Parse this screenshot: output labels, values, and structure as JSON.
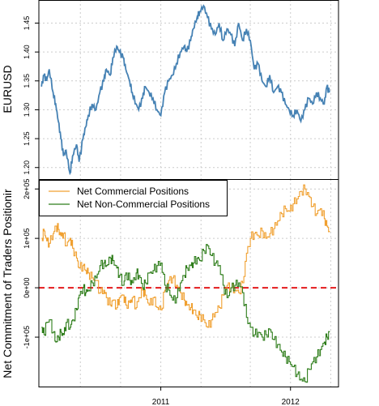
{
  "chart_data": [
    {
      "type": "line",
      "ylabel": "EURUSD",
      "ylim": [
        1.18,
        1.49
      ],
      "yticks": [
        1.2,
        1.25,
        1.3,
        1.35,
        1.4,
        1.45
      ],
      "ytick_labels": [
        "1.20",
        "1.25",
        "1.30",
        "1.35",
        "1.40",
        "1.45"
      ],
      "xlim": [
        2010.06,
        2012.37
      ],
      "grid": true,
      "color": "#4682b4",
      "series": [
        {
          "x": [
            2010.08,
            2010.1,
            2010.12,
            2010.14,
            2010.17,
            2010.19,
            2010.21,
            2010.23,
            2010.25,
            2010.27,
            2010.3,
            2010.32,
            2010.35,
            2010.37,
            2010.4,
            2010.42,
            2010.44,
            2010.47,
            2010.5,
            2010.53,
            2010.56,
            2010.58,
            2010.61,
            2010.63,
            2010.66,
            2010.68,
            2010.71,
            2010.73,
            2010.76,
            2010.78,
            2010.81,
            2010.83,
            2010.86,
            2010.88,
            2010.91,
            2010.94,
            2010.97,
            2011.0,
            2011.03,
            2011.06,
            2011.09,
            2011.12,
            2011.15,
            2011.18,
            2011.2,
            2011.23,
            2011.25,
            2011.28,
            2011.3,
            2011.33,
            2011.36,
            2011.39,
            2011.42,
            2011.45,
            2011.48,
            2011.51,
            2011.54,
            2011.57,
            2011.6,
            2011.63,
            2011.66,
            2011.69,
            2011.72,
            2011.75,
            2011.78,
            2011.81,
            2011.84,
            2011.87,
            2011.9,
            2011.93,
            2011.96,
            2011.99,
            2012.02,
            2012.05,
            2012.08,
            2012.11,
            2012.14,
            2012.17,
            2012.2,
            2012.23,
            2012.26,
            2012.28,
            2012.3
          ],
          "values": [
            1.34,
            1.36,
            1.35,
            1.37,
            1.33,
            1.31,
            1.28,
            1.25,
            1.22,
            1.23,
            1.19,
            1.22,
            1.24,
            1.21,
            1.25,
            1.27,
            1.29,
            1.31,
            1.3,
            1.33,
            1.35,
            1.37,
            1.36,
            1.39,
            1.41,
            1.4,
            1.39,
            1.37,
            1.35,
            1.33,
            1.31,
            1.3,
            1.32,
            1.34,
            1.33,
            1.32,
            1.3,
            1.29,
            1.33,
            1.35,
            1.36,
            1.38,
            1.4,
            1.41,
            1.4,
            1.42,
            1.44,
            1.46,
            1.47,
            1.48,
            1.46,
            1.44,
            1.43,
            1.45,
            1.42,
            1.44,
            1.43,
            1.41,
            1.45,
            1.42,
            1.44,
            1.42,
            1.37,
            1.38,
            1.35,
            1.34,
            1.36,
            1.33,
            1.34,
            1.33,
            1.31,
            1.3,
            1.29,
            1.3,
            1.28,
            1.3,
            1.32,
            1.31,
            1.33,
            1.32,
            1.31,
            1.34,
            1.33
          ]
        }
      ]
    },
    {
      "type": "line",
      "ylabel": "Net Commitment of Traders Positionir",
      "ylim": [
        -200000,
        220000
      ],
      "yticks": [
        200000,
        100000,
        0,
        -100000
      ],
      "ytick_labels": [
        "2e+05",
        "1e+05",
        "0e+00",
        "-1e+05"
      ],
      "xlim": [
        2010.06,
        2012.37
      ],
      "x_ticks": [
        2011.0,
        2012.0
      ],
      "x_tick_labels": [
        "2011",
        "2012"
      ],
      "grid": true,
      "legend_position": "top-left",
      "reference_line": {
        "y": 0,
        "color": "#e41a1c",
        "style": "dashed"
      },
      "x": [
        2010.08,
        2010.1,
        2010.12,
        2010.14,
        2010.17,
        2010.19,
        2010.21,
        2010.23,
        2010.25,
        2010.27,
        2010.3,
        2010.32,
        2010.35,
        2010.37,
        2010.4,
        2010.42,
        2010.44,
        2010.47,
        2010.5,
        2010.53,
        2010.56,
        2010.58,
        2010.61,
        2010.63,
        2010.66,
        2010.68,
        2010.71,
        2010.73,
        2010.76,
        2010.78,
        2010.81,
        2010.83,
        2010.86,
        2010.88,
        2010.91,
        2010.94,
        2010.97,
        2011.0,
        2011.03,
        2011.06,
        2011.09,
        2011.12,
        2011.15,
        2011.18,
        2011.2,
        2011.23,
        2011.25,
        2011.28,
        2011.3,
        2011.33,
        2011.36,
        2011.39,
        2011.42,
        2011.45,
        2011.48,
        2011.51,
        2011.54,
        2011.57,
        2011.6,
        2011.63,
        2011.66,
        2011.69,
        2011.72,
        2011.75,
        2011.78,
        2011.81,
        2011.84,
        2011.87,
        2011.9,
        2011.93,
        2011.96,
        2011.99,
        2012.02,
        2012.05,
        2012.08,
        2012.11,
        2012.14,
        2012.17,
        2012.2,
        2012.23,
        2012.26,
        2012.28,
        2012.3
      ],
      "series": [
        {
          "name": "Net Commercial Positions",
          "color": "#f0a030",
          "values": [
            100000,
            115000,
            95000,
            90000,
            110000,
            125000,
            118000,
            105000,
            110000,
            85000,
            100000,
            80000,
            60000,
            40000,
            45000,
            35000,
            30000,
            20000,
            15000,
            -10000,
            -5000,
            -20000,
            -35000,
            -25000,
            -40000,
            -20000,
            -15000,
            -35000,
            -30000,
            -20000,
            -40000,
            -20000,
            -5000,
            -15000,
            -35000,
            -20000,
            -40000,
            -45000,
            -5000,
            15000,
            20000,
            5000,
            -10000,
            -25000,
            -35000,
            -40000,
            -45000,
            -60000,
            -55000,
            -65000,
            -80000,
            -65000,
            -50000,
            -40000,
            -15000,
            5000,
            0,
            -5000,
            -10000,
            10000,
            70000,
            100000,
            110000,
            105000,
            115000,
            100000,
            110000,
            120000,
            135000,
            150000,
            160000,
            155000,
            170000,
            180000,
            195000,
            200000,
            185000,
            165000,
            150000,
            160000,
            140000,
            125000,
            115000
          ]
        },
        {
          "name": "Net Non-Commercial Positions",
          "color": "#2e7d1a",
          "values": [
            -80000,
            -95000,
            -70000,
            -65000,
            -90000,
            -110000,
            -100000,
            -90000,
            -95000,
            -70000,
            -80000,
            -65000,
            -45000,
            -15000,
            0,
            -10000,
            -5000,
            10000,
            20000,
            45000,
            50000,
            45000,
            60000,
            55000,
            40000,
            25000,
            5000,
            30000,
            15000,
            10000,
            30000,
            25000,
            0,
            10000,
            30000,
            35000,
            45000,
            50000,
            5000,
            -5000,
            -25000,
            -20000,
            10000,
            25000,
            40000,
            45000,
            50000,
            60000,
            55000,
            75000,
            85000,
            65000,
            50000,
            45000,
            5000,
            -20000,
            0,
            5000,
            10000,
            -10000,
            -60000,
            -80000,
            -95000,
            -90000,
            -100000,
            -95000,
            -85000,
            -105000,
            -115000,
            -130000,
            -140000,
            -150000,
            -160000,
            -175000,
            -185000,
            -190000,
            -165000,
            -150000,
            -140000,
            -125000,
            -110000,
            -100000,
            -90000
          ]
        }
      ]
    }
  ]
}
